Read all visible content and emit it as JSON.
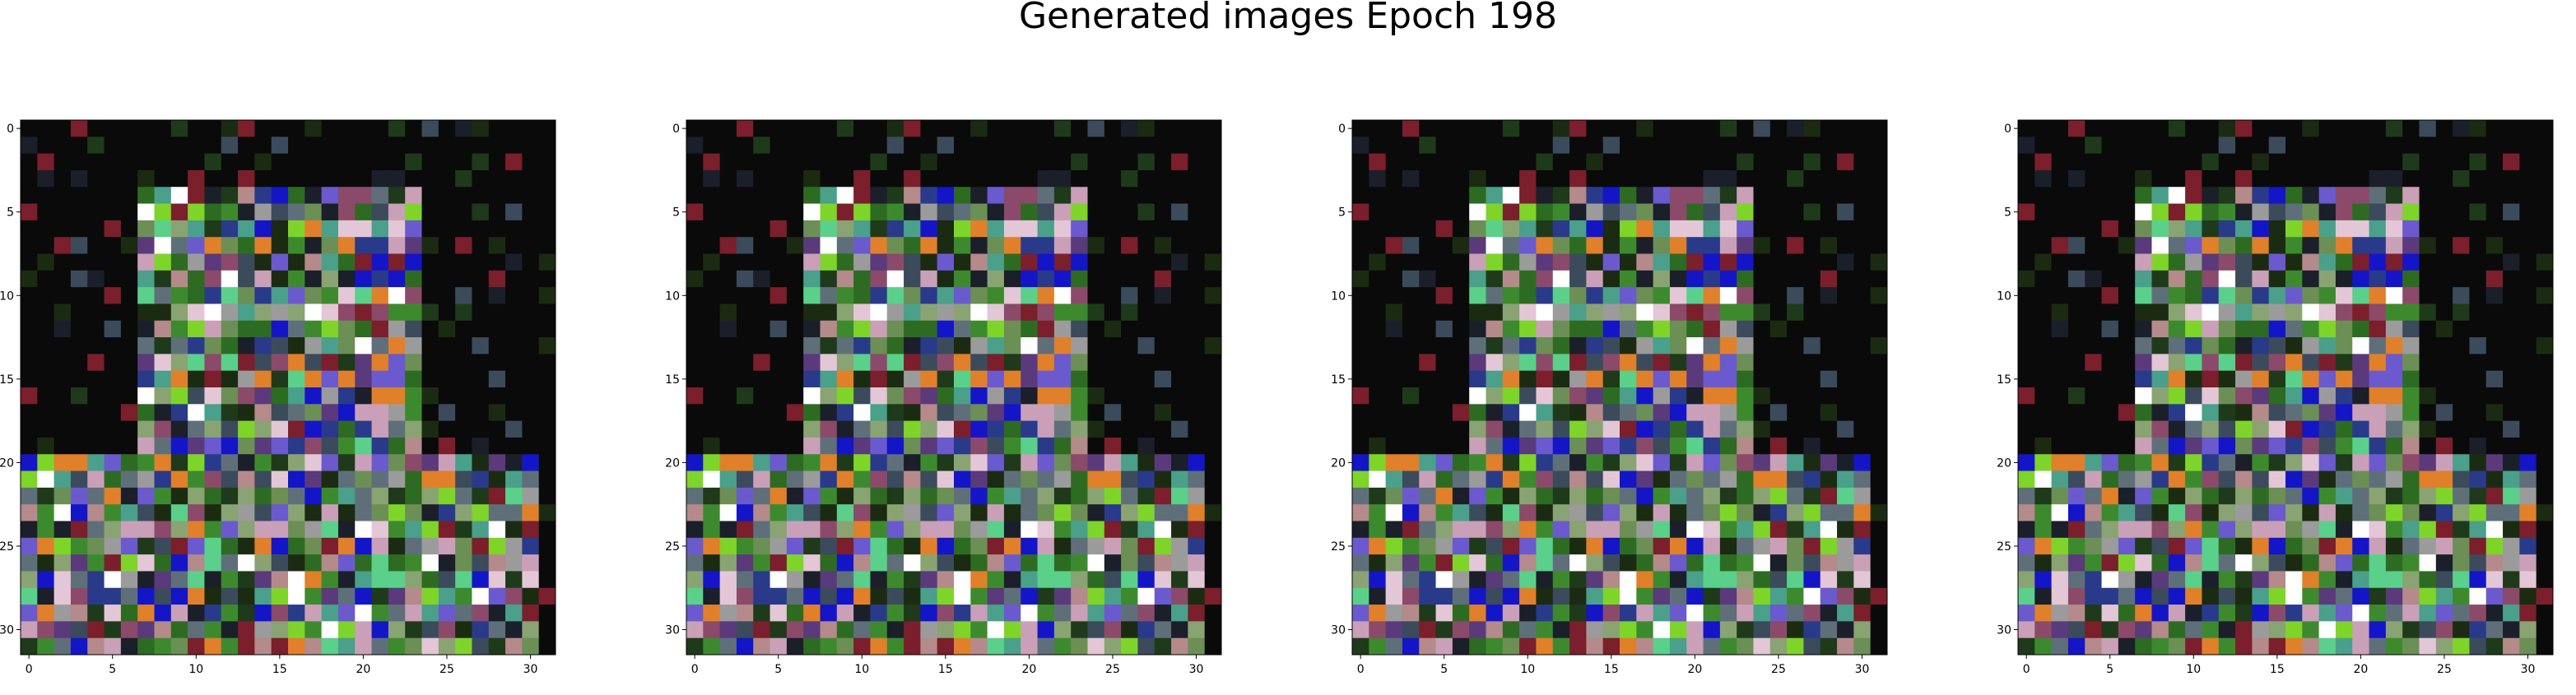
{
  "figure": {
    "title": "Generated images Epoch 198"
  },
  "chart_data": {
    "type": "heatmap",
    "title": "Generated images Epoch 198",
    "description_of_content": "",
    "grid_size": [
      32,
      32
    ],
    "panel_count": 4,
    "xlim": [
      -0.5,
      31.5
    ],
    "ylim": [
      31.5,
      -0.5
    ],
    "x_ticks": [
      0,
      5,
      10,
      15,
      20,
      25,
      30
    ],
    "y_ticks": [
      0,
      5,
      10,
      15,
      20,
      25,
      30
    ],
    "x_tick_labels": [
      "0",
      "5",
      "10",
      "15",
      "20",
      "25",
      "30"
    ],
    "y_tick_labels": [
      "0",
      "5",
      "10",
      "15",
      "20",
      "25",
      "30"
    ],
    "background_color": "#030303",
    "palette": [
      "#0a0a0a",
      "#1b2b12",
      "#1e3a1a",
      "#2e6b22",
      "#3d8a2e",
      "#6c8f55",
      "#8aa373",
      "#9b9b9b",
      "#b48a8a",
      "#c9a0b8",
      "#e3c7d6",
      "#ffffff",
      "#8b4a6a",
      "#7a1f2b",
      "#5a3a7a",
      "#6a5acd",
      "#2a3a8a",
      "#1515c8",
      "#7fd42a",
      "#e0802a",
      "#4aa08a",
      "#5ad08a",
      "#3b4b5b",
      "#5f6f7a",
      "#1a1f2a"
    ]
  }
}
